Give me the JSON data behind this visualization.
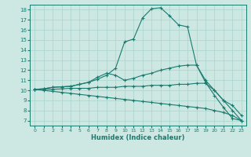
{
  "xlabel": "Humidex (Indice chaleur)",
  "background_color": "#cde8e3",
  "grid_color": "#a8d4cc",
  "line_color": "#1a7a6e",
  "xlim": [
    -0.5,
    23.5
  ],
  "ylim": [
    6.5,
    18.5
  ],
  "yticks": [
    7,
    8,
    9,
    10,
    11,
    12,
    13,
    14,
    15,
    16,
    17,
    18
  ],
  "xticks": [
    0,
    1,
    2,
    3,
    4,
    5,
    6,
    7,
    8,
    9,
    10,
    11,
    12,
    13,
    14,
    15,
    16,
    17,
    18,
    19,
    20,
    21,
    22,
    23
  ],
  "lines": [
    [
      10.1,
      10.15,
      10.3,
      10.35,
      10.4,
      10.6,
      10.8,
      11.1,
      11.5,
      12.2,
      14.8,
      15.1,
      17.2,
      18.1,
      18.2,
      17.4,
      16.5,
      16.3,
      12.5,
      10.8,
      9.5,
      8.3,
      7.2,
      7.0
    ],
    [
      10.1,
      10.15,
      10.3,
      10.35,
      10.4,
      10.6,
      10.8,
      11.3,
      11.7,
      11.5,
      11.0,
      11.2,
      11.5,
      11.7,
      12.0,
      12.2,
      12.4,
      12.5,
      12.5,
      11.0,
      10.0,
      9.0,
      8.0,
      7.0
    ],
    [
      10.1,
      10.1,
      10.1,
      10.15,
      10.2,
      10.2,
      10.2,
      10.3,
      10.3,
      10.3,
      10.4,
      10.4,
      10.4,
      10.5,
      10.5,
      10.5,
      10.6,
      10.6,
      10.7,
      10.7,
      10.0,
      9.0,
      8.5,
      7.5
    ],
    [
      10.1,
      10.0,
      9.9,
      9.8,
      9.7,
      9.6,
      9.5,
      9.4,
      9.3,
      9.2,
      9.1,
      9.0,
      8.9,
      8.8,
      8.7,
      8.6,
      8.5,
      8.4,
      8.3,
      8.2,
      8.0,
      7.8,
      7.5,
      7.0
    ]
  ]
}
